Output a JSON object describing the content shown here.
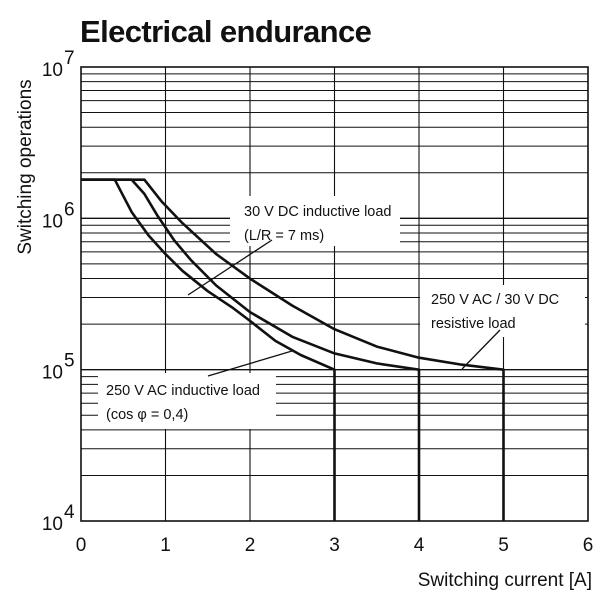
{
  "chart_data": {
    "type": "line",
    "title": "Electrical endurance",
    "xlabel": "Switching current [A]",
    "ylabel": "Switching operations",
    "xlim": [
      0,
      6
    ],
    "ylim": [
      10000,
      10000000
    ],
    "y_scale": "log",
    "grid": true,
    "x_ticks": [
      "0",
      "1",
      "2",
      "3",
      "4",
      "5",
      "6"
    ],
    "y_ticks": [
      {
        "base": "10",
        "exp": "4",
        "value": 10000
      },
      {
        "base": "10",
        "exp": "5",
        "value": 100000
      },
      {
        "base": "10",
        "exp": "6",
        "value": 1000000
      },
      {
        "base": "10",
        "exp": "7",
        "value": 10000000
      }
    ],
    "series": [
      {
        "id": "ac-inductive",
        "x": [
          0,
          0.4,
          0.6,
          0.8,
          1.0,
          1.2,
          1.5,
          1.8,
          2.0,
          2.3,
          2.6,
          3.0,
          3.0
        ],
        "y": [
          1800000,
          1800000,
          1100000,
          770000,
          580000,
          450000,
          330000,
          255000,
          210000,
          155000,
          125000,
          100000,
          10000
        ]
      },
      {
        "id": "dc-inductive",
        "x": [
          0,
          0.6,
          0.75,
          0.9,
          1.1,
          1.3,
          1.6,
          2.0,
          2.5,
          3.0,
          3.5,
          4.0,
          4.0
        ],
        "y": [
          1800000,
          1800000,
          1450000,
          1050000,
          720000,
          530000,
          360000,
          240000,
          165000,
          128000,
          110000,
          100000,
          10000
        ]
      },
      {
        "id": "ac-dc-resistive",
        "x": [
          0,
          0.75,
          0.95,
          1.2,
          1.6,
          2.0,
          2.5,
          3.0,
          3.5,
          4.0,
          4.5,
          5.0,
          5.0
        ],
        "y": [
          1800000,
          1800000,
          1300000,
          930000,
          580000,
          400000,
          265000,
          185000,
          142000,
          120000,
          108000,
          100000,
          10000
        ]
      }
    ],
    "annotations": [
      {
        "id": "dc-inductive",
        "lines": [
          "30 V DC inductive load",
          "(L/R = 7 ms)"
        ]
      },
      {
        "id": "ac-dc-resistive",
        "lines": [
          "250 V AC / 30 V DC",
          "resistive load"
        ]
      },
      {
        "id": "ac-inductive",
        "lines": [
          "250 V AC inductive load",
          "(cos φ = 0,4)"
        ]
      }
    ]
  }
}
